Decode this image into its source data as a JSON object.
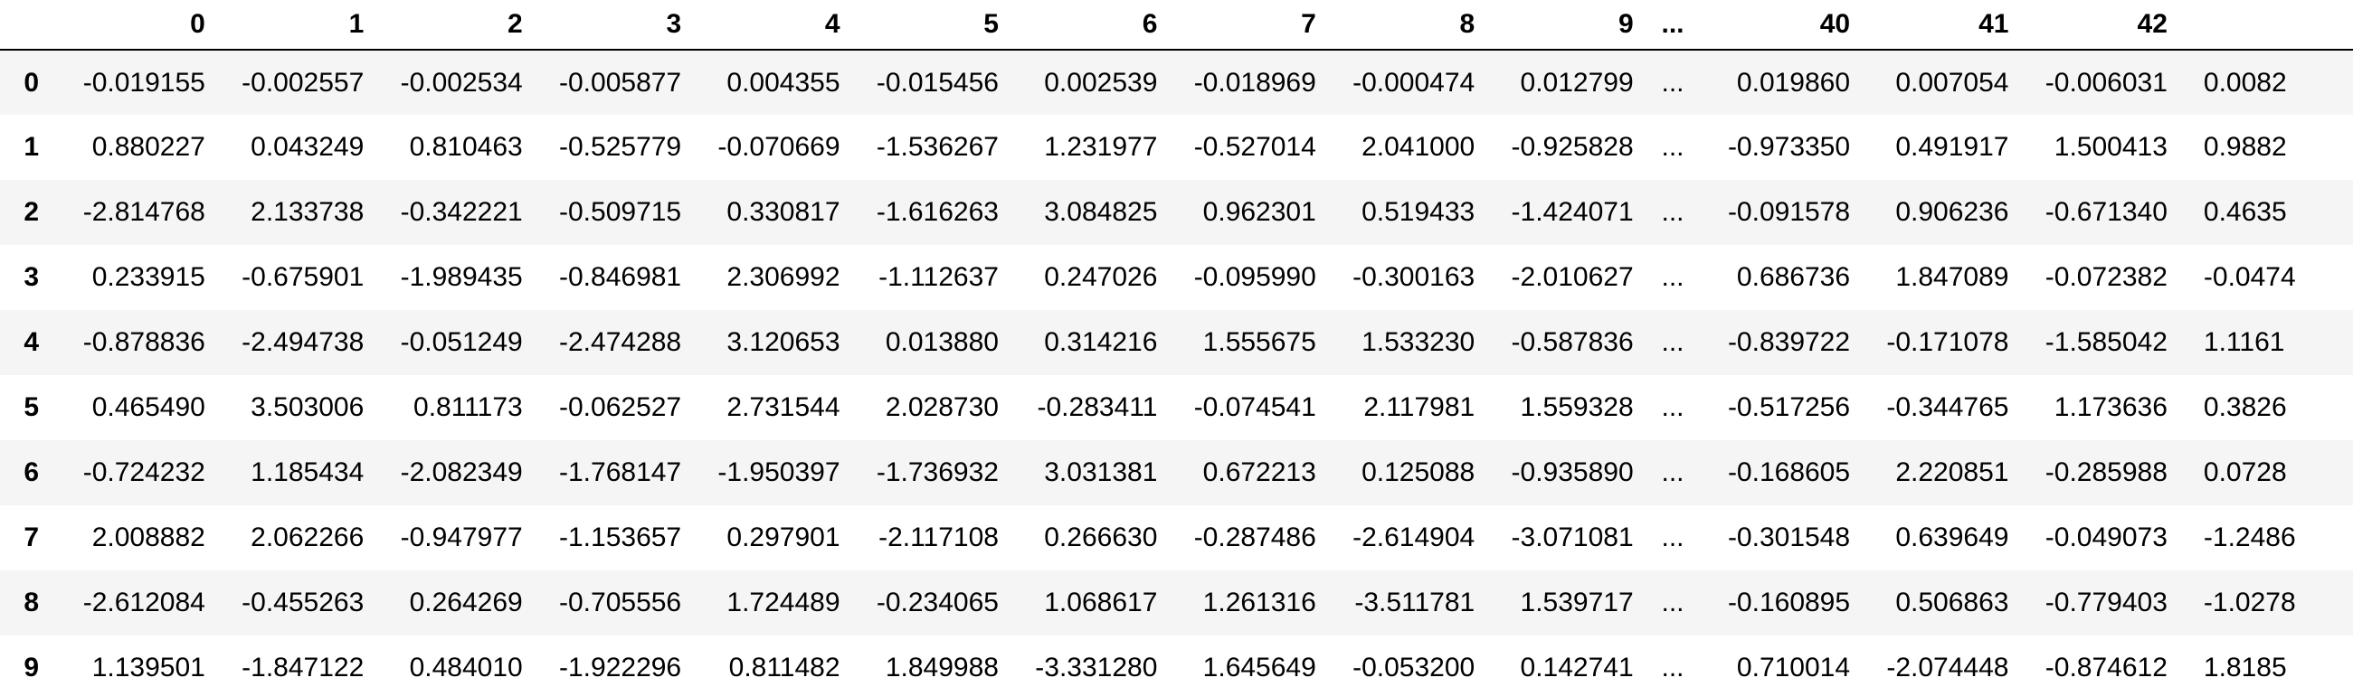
{
  "table": {
    "columns": [
      "",
      "0",
      "1",
      "2",
      "3",
      "4",
      "5",
      "6",
      "7",
      "8",
      "9",
      "...",
      "40",
      "41",
      "42",
      ""
    ],
    "rows": [
      {
        "index": "0",
        "cells": [
          "-0.019155",
          "-0.002557",
          "-0.002534",
          "-0.005877",
          "0.004355",
          "-0.015456",
          "0.002539",
          "-0.018969",
          "-0.000474",
          "0.012799",
          "...",
          "0.019860",
          "0.007054",
          "-0.006031",
          "0.0082"
        ]
      },
      {
        "index": "1",
        "cells": [
          "0.880227",
          "0.043249",
          "0.810463",
          "-0.525779",
          "-0.070669",
          "-1.536267",
          "1.231977",
          "-0.527014",
          "2.041000",
          "-0.925828",
          "...",
          "-0.973350",
          "0.491917",
          "1.500413",
          "0.9882"
        ]
      },
      {
        "index": "2",
        "cells": [
          "-2.814768",
          "2.133738",
          "-0.342221",
          "-0.509715",
          "0.330817",
          "-1.616263",
          "3.084825",
          "0.962301",
          "0.519433",
          "-1.424071",
          "...",
          "-0.091578",
          "0.906236",
          "-0.671340",
          "0.4635"
        ]
      },
      {
        "index": "3",
        "cells": [
          "0.233915",
          "-0.675901",
          "-1.989435",
          "-0.846981",
          "2.306992",
          "-1.112637",
          "0.247026",
          "-0.095990",
          "-0.300163",
          "-2.010627",
          "...",
          "0.686736",
          "1.847089",
          "-0.072382",
          "-0.0474"
        ]
      },
      {
        "index": "4",
        "cells": [
          "-0.878836",
          "-2.494738",
          "-0.051249",
          "-2.474288",
          "3.120653",
          "0.013880",
          "0.314216",
          "1.555675",
          "1.533230",
          "-0.587836",
          "...",
          "-0.839722",
          "-0.171078",
          "-1.585042",
          "1.1161"
        ]
      },
      {
        "index": "5",
        "cells": [
          "0.465490",
          "3.503006",
          "0.811173",
          "-0.062527",
          "2.731544",
          "2.028730",
          "-0.283411",
          "-0.074541",
          "2.117981",
          "1.559328",
          "...",
          "-0.517256",
          "-0.344765",
          "1.173636",
          "0.3826"
        ]
      },
      {
        "index": "6",
        "cells": [
          "-0.724232",
          "1.185434",
          "-2.082349",
          "-1.768147",
          "-1.950397",
          "-1.736932",
          "3.031381",
          "0.672213",
          "0.125088",
          "-0.935890",
          "...",
          "-0.168605",
          "2.220851",
          "-0.285988",
          "0.0728"
        ]
      },
      {
        "index": "7",
        "cells": [
          "2.008882",
          "2.062266",
          "-0.947977",
          "-1.153657",
          "0.297901",
          "-2.117108",
          "0.266630",
          "-0.287486",
          "-2.614904",
          "-3.071081",
          "...",
          "-0.301548",
          "0.639649",
          "-0.049073",
          "-1.2486"
        ]
      },
      {
        "index": "8",
        "cells": [
          "-2.612084",
          "-0.455263",
          "0.264269",
          "-0.705556",
          "1.724489",
          "-0.234065",
          "1.068617",
          "1.261316",
          "-3.511781",
          "1.539717",
          "...",
          "-0.160895",
          "0.506863",
          "-0.779403",
          "-1.0278"
        ]
      },
      {
        "index": "9",
        "cells": [
          "1.139501",
          "-1.847122",
          "0.484010",
          "-1.922296",
          "0.811482",
          "1.849988",
          "-3.331280",
          "1.645649",
          "-0.053200",
          "0.142741",
          "...",
          "0.710014",
          "-2.074448",
          "-0.874612",
          "1.8185"
        ]
      }
    ]
  }
}
